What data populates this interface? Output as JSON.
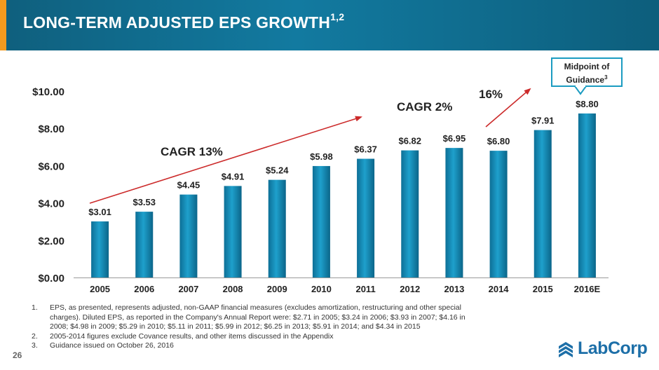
{
  "header": {
    "title": "LONG-TERM ADJUSTED EPS GROWTH",
    "title_superscript": "1,2",
    "accent_color": "#f39a1f"
  },
  "callout": {
    "line1": "Midpoint of",
    "line2": "Guidance",
    "superscript": "3"
  },
  "chart_data": {
    "type": "bar",
    "categories": [
      "2005",
      "2006",
      "2007",
      "2008",
      "2009",
      "2010",
      "2011",
      "2012",
      "2013",
      "2014",
      "2015",
      "2016E"
    ],
    "values": [
      3.01,
      3.53,
      4.45,
      4.91,
      5.24,
      5.98,
      6.37,
      6.82,
      6.95,
      6.8,
      7.91,
      8.8
    ],
    "data_labels": [
      "$3.01",
      "$3.53",
      "$4.45",
      "$4.91",
      "$5.24",
      "$5.98",
      "$6.37",
      "$6.82",
      "$6.95",
      "$6.80",
      "$7.91",
      "$8.80"
    ],
    "ylim": [
      0,
      10
    ],
    "y_ticks": [
      0,
      2,
      4,
      6,
      8,
      10
    ],
    "y_tick_labels": [
      "$0.00",
      "$2.00",
      "$4.00",
      "$6.00",
      "$8.00",
      "$10.00"
    ],
    "bar_color": "#1789b5",
    "annotations": {
      "cagr_long": "CAGR 13%",
      "cagr_mid": "CAGR 2%",
      "growth_recent": "16%"
    }
  },
  "footnotes": [
    {
      "num": "1.",
      "text": "EPS, as presented, represents adjusted, non-GAAP financial measures (excludes amortization, restructuring and other special charges). Diluted EPS, as reported in the Company's Annual Report were: $2.71 in 2005; $3.24 in 2006; $3.93 in 2007; $4.16 in 2008; $4.98 in 2009; $5.29 in 2010; $5.11 in 2011; $5.99 in 2012; $6.25 in 2013; $5.91 in 2014; and $4.34 in 2015"
    },
    {
      "num": "2.",
      "text": "2005-2014 figures exclude Covance results, and other items discussed in the Appendix"
    },
    {
      "num": "3.",
      "text": "Guidance issued on October 26, 2016"
    }
  ],
  "page_number": "26",
  "logo": {
    "text": "LabCorp"
  }
}
